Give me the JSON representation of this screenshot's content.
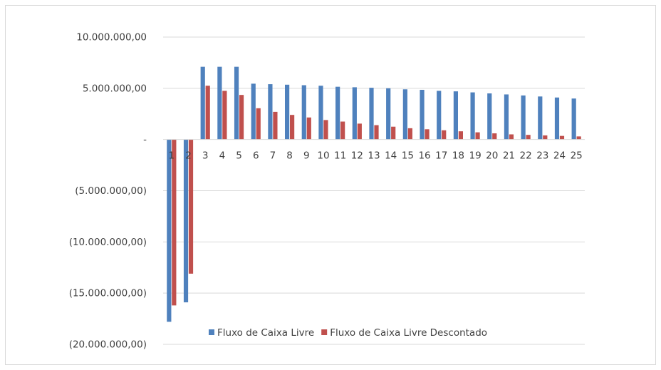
{
  "chart_data": {
    "type": "bar",
    "title": "",
    "xlabel": "",
    "ylabel": "",
    "ylim": [
      -20000000,
      10000000
    ],
    "grid": true,
    "legend_placement": "bottom",
    "categories": [
      "1",
      "2",
      "3",
      "4",
      "5",
      "6",
      "7",
      "8",
      "9",
      "10",
      "11",
      "12",
      "13",
      "14",
      "15",
      "16",
      "17",
      "18",
      "19",
      "20",
      "21",
      "22",
      "23",
      "24",
      "25"
    ],
    "ytick_values": [
      10000000,
      5000000,
      0,
      -5000000,
      -10000000,
      -15000000,
      -20000000
    ],
    "ytick_labels": [
      "10.000.000,00",
      "5.000.000,00",
      "-",
      "(5.000.000,00)",
      "(10.000.000,00)",
      "(15.000.000,00)",
      "(20.000.000,00)"
    ],
    "series": [
      {
        "name": "Fluxo de Caixa Livre",
        "color": "#4f81bd",
        "values": [
          -17800000,
          -15900000,
          7100000,
          7100000,
          7100000,
          5450000,
          5400000,
          5350000,
          5300000,
          5250000,
          5150000,
          5100000,
          5050000,
          5000000,
          4900000,
          4850000,
          4750000,
          4700000,
          4600000,
          4500000,
          4400000,
          4300000,
          4200000,
          4100000,
          4000000
        ]
      },
      {
        "name": "Fluxo de Caixa Livre Descontado",
        "color": "#c0504d",
        "values": [
          -16200000,
          -13100000,
          5250000,
          4750000,
          4350000,
          3050000,
          2700000,
          2400000,
          2150000,
          1900000,
          1750000,
          1550000,
          1400000,
          1250000,
          1100000,
          1000000,
          900000,
          800000,
          700000,
          600000,
          500000,
          450000,
          400000,
          350000,
          300000
        ]
      }
    ]
  }
}
